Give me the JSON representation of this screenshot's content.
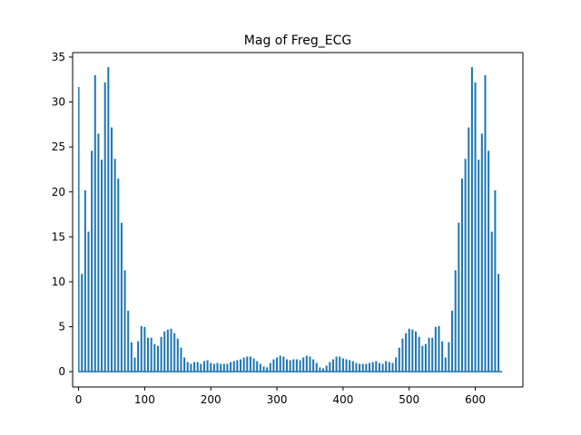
{
  "chart_data": {
    "type": "line",
    "title": "Mag of Freg_ECG",
    "xlabel": "",
    "ylabel": "",
    "xlim": [
      -9,
      672
    ],
    "ylim": [
      -1.7,
      35.5
    ],
    "x_ticks": [
      0,
      100,
      200,
      300,
      400,
      500,
      600
    ],
    "y_ticks": [
      0,
      5,
      10,
      15,
      20,
      25,
      30,
      35
    ],
    "grid": false,
    "legend": "none",
    "series_color": "#1f77b4",
    "sample_spacing": 5,
    "series": [
      {
        "x": [
          0,
          5,
          10,
          15,
          20,
          25,
          30,
          35,
          40,
          45,
          50,
          55,
          60,
          65,
          70,
          75,
          80,
          85,
          90,
          95,
          100,
          105,
          110,
          115,
          120,
          125,
          130,
          135,
          140,
          145,
          150,
          155,
          160,
          165,
          170,
          175,
          180,
          185,
          190,
          195,
          200,
          205,
          210,
          215,
          220,
          225,
          230,
          235,
          240,
          245,
          250,
          255,
          260,
          265,
          270,
          275,
          280,
          285,
          290,
          295,
          300,
          305,
          310,
          315,
          320,
          325,
          330,
          335,
          340,
          345,
          350,
          355,
          360,
          365,
          370,
          375,
          380,
          385,
          390,
          395,
          400,
          405,
          410,
          415,
          420,
          425,
          430,
          435,
          440,
          445,
          450,
          455,
          460,
          465,
          470,
          475,
          480,
          485,
          490,
          495,
          500,
          505,
          510,
          515,
          520,
          525,
          530,
          535,
          540,
          545,
          550,
          555,
          560,
          565,
          570,
          575,
          580,
          585,
          590,
          595,
          600,
          605,
          610,
          615,
          620,
          625,
          630,
          635,
          640
        ],
        "y": [
          31.6,
          10.8,
          20.1,
          15.5,
          24.5,
          32.9,
          26.4,
          23.5,
          32.1,
          33.8,
          27.1,
          23.6,
          21.4,
          16.5,
          11.2,
          6.7,
          3.2,
          1.5,
          3.3,
          5.0,
          4.9,
          3.7,
          3.7,
          3.0,
          2.8,
          3.8,
          4.4,
          4.6,
          4.7,
          4.2,
          3.6,
          2.6,
          1.5,
          1.0,
          0.8,
          1.0,
          1.0,
          0.8,
          1.1,
          1.2,
          0.9,
          0.8,
          0.9,
          0.8,
          0.8,
          0.8,
          1.0,
          1.1,
          1.2,
          1.3,
          1.5,
          1.6,
          1.6,
          1.4,
          1.1,
          0.8,
          0.5,
          0.4,
          0.9,
          1.3,
          1.5,
          1.7,
          1.6,
          1.3,
          1.2,
          1.3,
          1.3,
          1.2,
          1.5,
          1.7,
          1.6,
          1.3,
          0.9,
          0.4,
          0.3,
          0.6,
          1.0,
          1.3,
          1.6,
          1.6,
          1.4,
          1.3,
          1.2,
          1.1,
          0.9,
          0.8,
          0.8,
          0.8,
          0.9,
          1.0,
          1.1,
          0.9,
          0.8,
          1.1,
          1.0,
          0.9,
          1.5,
          2.6,
          3.6,
          4.2,
          4.7,
          4.6,
          4.4,
          3.8,
          2.8,
          3.0,
          3.7,
          3.7,
          4.9,
          5.0,
          3.3,
          1.5,
          3.2,
          6.7,
          11.2,
          16.5,
          21.4,
          23.6,
          27.1,
          33.8,
          32.1,
          23.5,
          26.4,
          32.9,
          24.5,
          15.5,
          20.1,
          10.8,
          0.0
        ]
      }
    ]
  }
}
